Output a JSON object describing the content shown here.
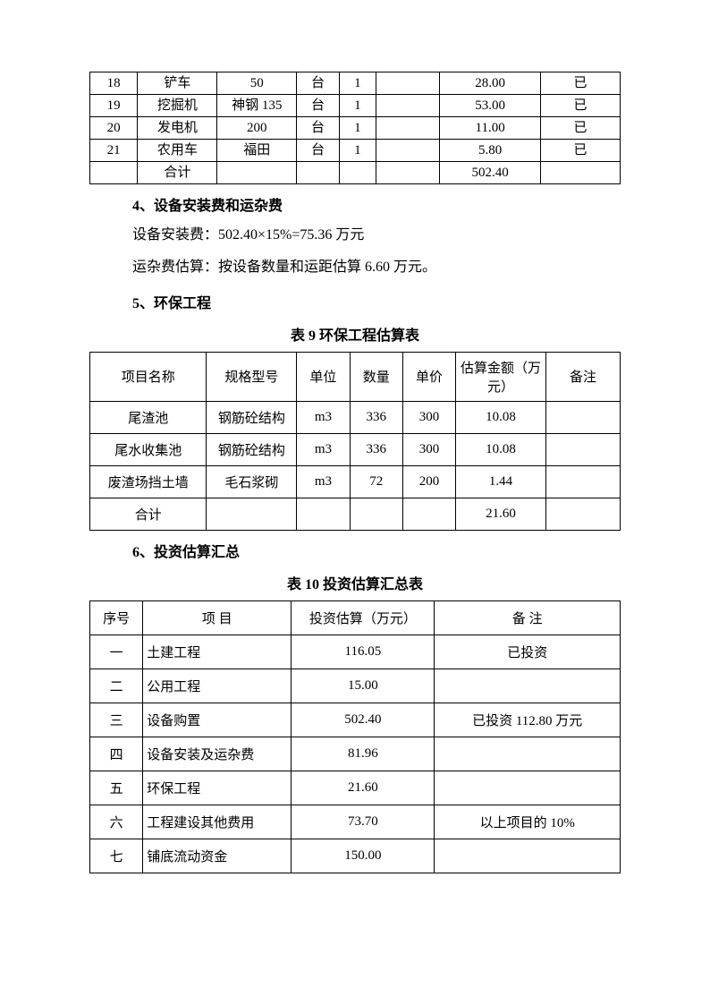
{
  "table1": {
    "col_widths": [
      "9%",
      "15%",
      "15%",
      "8%",
      "7%",
      "12%",
      "19%",
      "15%"
    ],
    "rows": [
      [
        "18",
        "铲车",
        "50",
        "台",
        "1",
        "",
        "28.00",
        "已"
      ],
      [
        "19",
        "挖掘机",
        "神钢 135",
        "台",
        "1",
        "",
        "53.00",
        "已"
      ],
      [
        "20",
        "发电机",
        "200",
        "台",
        "1",
        "",
        "11.00",
        "已"
      ],
      [
        "21",
        "农用车",
        "福田",
        "台",
        "1",
        "",
        "5.80",
        "已"
      ],
      [
        "",
        "合计",
        "",
        "",
        "",
        "",
        "502.40",
        ""
      ]
    ]
  },
  "section4": {
    "heading": "4、设备安装费和运杂费",
    "line1": "设备安装费：502.40×15%=75.36 万元",
    "line2": "运杂费估算：按设备数量和运距估算 6.60 万元。"
  },
  "section5": {
    "heading": "5、环保工程",
    "title": "表 9    环保工程估算表"
  },
  "table9": {
    "col_widths": [
      "22%",
      "17%",
      "10%",
      "10%",
      "10%",
      "17%",
      "14%"
    ],
    "header": [
      "项目名称",
      "规格型号",
      "单位",
      "数量",
      "单价",
      "估算金额（万元）",
      "备注"
    ],
    "rows": [
      [
        "尾渣池",
        "钢筋砼结构",
        "m3",
        "336",
        "300",
        "10.08",
        ""
      ],
      [
        "尾水收集池",
        "钢筋砼结构",
        "m3",
        "336",
        "300",
        "10.08",
        ""
      ],
      [
        "废渣场挡土墙",
        "毛石浆砌",
        "m3",
        "72",
        "200",
        "1.44",
        ""
      ],
      [
        "合计",
        "",
        "",
        "",
        "",
        "21.60",
        ""
      ]
    ]
  },
  "section6": {
    "heading": "6、投资估算汇总",
    "title": "表 10    投资估算汇总表"
  },
  "table10": {
    "col_widths": [
      "10%",
      "28%",
      "27%",
      "35%"
    ],
    "header": [
      "序号",
      "项    目",
      "投资估算（万元）",
      "备    注"
    ],
    "rows": [
      [
        "一",
        "土建工程",
        "116.05",
        "已投资"
      ],
      [
        "二",
        "公用工程",
        "15.00",
        ""
      ],
      [
        "三",
        "设备购置",
        "502.40",
        "已投资 112.80 万元"
      ],
      [
        "四",
        "设备安装及运杂费",
        "81.96",
        ""
      ],
      [
        "五",
        "环保工程",
        "21.60",
        ""
      ],
      [
        "六",
        "工程建设其他费用",
        "73.70",
        "以上项目的 10%"
      ],
      [
        "七",
        "铺底流动资金",
        "150.00",
        ""
      ]
    ]
  }
}
